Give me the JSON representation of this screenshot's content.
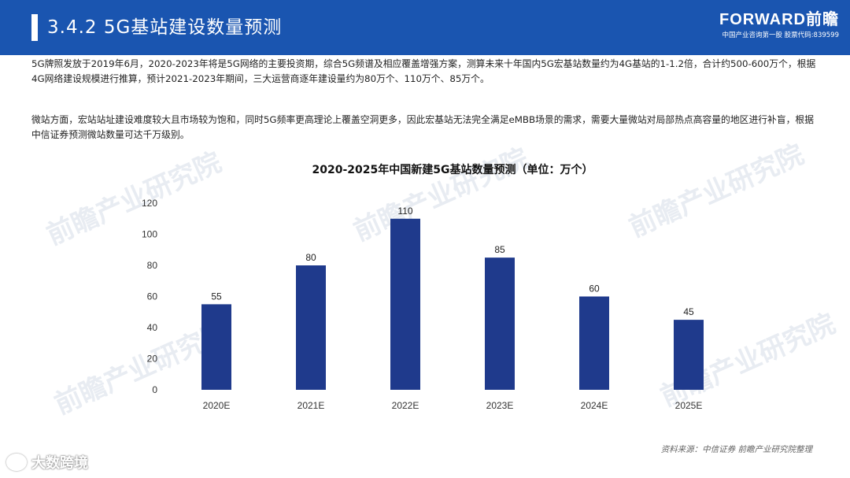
{
  "header": {
    "title": "3.4.2 5G基站建设数量预测",
    "brand_logo": "FORWARD前瞻",
    "brand_sub": "中国产业咨询第一股 股票代码:839599"
  },
  "paragraphs": [
    "5G牌照发放于2019年6月，2020-2023年将是5G网络的主要投资期，综合5G频谱及相应覆盖增强方案，测算未来十年国内5G宏基站数量约为4G基站的1-1.2倍，合计约500-600万个，根据4G网络建设规模进行推算，预计2021-2023年期间，三大运营商逐年建设量约为80万个、110万个、85万个。",
    "微站方面，宏站站址建设难度较大且市场较为饱和，同时5G频率更高理论上覆盖空洞更多，因此宏基站无法完全满足eMBB场景的需求，需要大量微站对局部热点高容量的地区进行补盲，根据中信证券预测微站数量可达千万级别。"
  ],
  "watermark_text": "前瞻产业研究院",
  "source": "资料来源：中信证券 前瞻产业研究院整理",
  "corner_mark": "大数跨境",
  "colors": {
    "header": "#1a55b0",
    "bar": "#1f3a8c"
  },
  "chart_data": {
    "type": "bar",
    "title": "2020-2025年中国新建5G基站数量预测（单位：万个）",
    "categories": [
      "2020E",
      "2021E",
      "2022E",
      "2023E",
      "2024E",
      "2025E"
    ],
    "values": [
      55,
      80,
      110,
      85,
      60,
      45
    ],
    "ylim": [
      0,
      120
    ],
    "yticks": [
      0,
      20,
      40,
      60,
      80,
      100,
      120
    ],
    "xlabel": "",
    "ylabel": "",
    "grid": false,
    "data_labels": true
  }
}
